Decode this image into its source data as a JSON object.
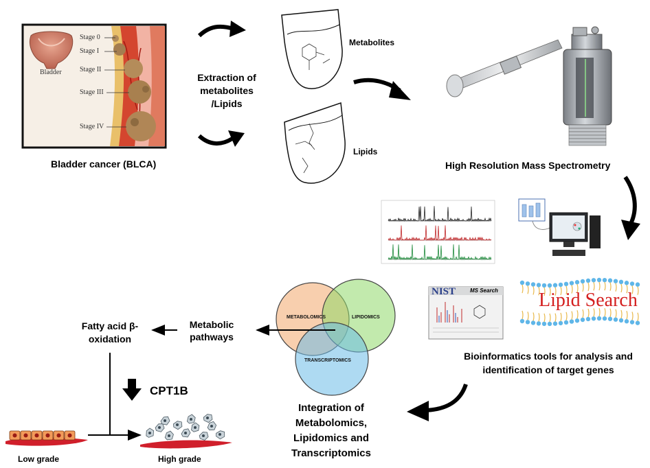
{
  "bladder_panel": {
    "organ_label": "Bladder",
    "stages": [
      "Stage 0",
      "Stage I",
      "Stage II",
      "Stage III",
      "Stage IV"
    ],
    "caption": "Bladder cancer (BLCA)"
  },
  "extraction": {
    "label_line1": "Extraction of",
    "label_line2": "metabolites",
    "label_line3": "/Lipids"
  },
  "tubes": {
    "metabolites": "Metabolites",
    "lipids": "Lipids"
  },
  "ms": {
    "caption": "High Resolution Mass Spectrometry"
  },
  "tools": {
    "nist_logo": "NIST",
    "nist_title": "MS Search",
    "lipid_search": "Lipid Search",
    "caption_line1": "Bioinformatics tools for analysis and",
    "caption_line2": "identification of target genes"
  },
  "venn": {
    "metabolomics": "METABOLOMICS",
    "lipidomics": "LIPIDOMICS",
    "transcriptomics": "TRANSCRIPTOMICS",
    "colors": {
      "metabolomics": "#f2a76b",
      "lipidomics": "#8fd86a",
      "transcriptomics": "#6bbce8"
    }
  },
  "integration": {
    "line1": "Integration of",
    "line2": "Metabolomics,",
    "line3": "Lipidomics and",
    "line4": "Transcriptomics"
  },
  "pathway": {
    "metabolic_line1": "Metabolic",
    "metabolic_line2": "pathways",
    "fatty_line1": "Fatty acid β-",
    "fatty_line2": "oxidation",
    "gene": "CPT1B",
    "low_grade": "Low grade",
    "high_grade": "High grade"
  }
}
